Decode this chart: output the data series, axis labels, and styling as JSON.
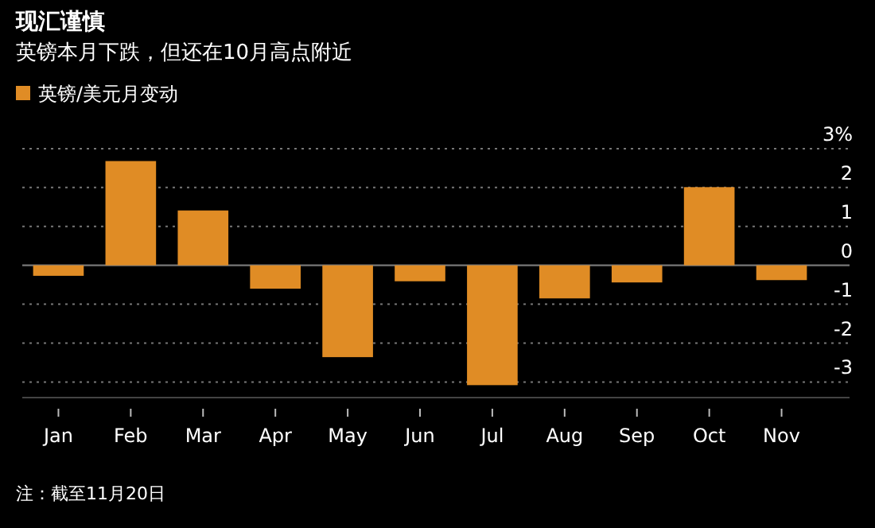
{
  "chart_data": {
    "type": "bar",
    "title": "现汇谨慎",
    "subtitle": "英镑本月下跌，但还在10月高点附近",
    "categories": [
      "Jan",
      "Feb",
      "Mar",
      "Apr",
      "May",
      "Jun",
      "Jul",
      "Aug",
      "Sep",
      "Oct",
      "Nov"
    ],
    "series": [
      {
        "name": "英镑/美元月变动",
        "color": "#e08c25",
        "values": [
          -0.27,
          2.68,
          1.41,
          -0.6,
          -2.36,
          -0.41,
          -3.08,
          -0.85,
          -0.44,
          2.01,
          -0.38
        ]
      }
    ],
    "ylim": [
      -3.4,
      3.1
    ],
    "yticks": [
      {
        "value": 3,
        "label": "3%"
      },
      2,
      1,
      0,
      -1,
      -2,
      -3
    ],
    "grid": "y",
    "legend": "top left",
    "annotations": [
      "注：截至11月20日"
    ]
  }
}
